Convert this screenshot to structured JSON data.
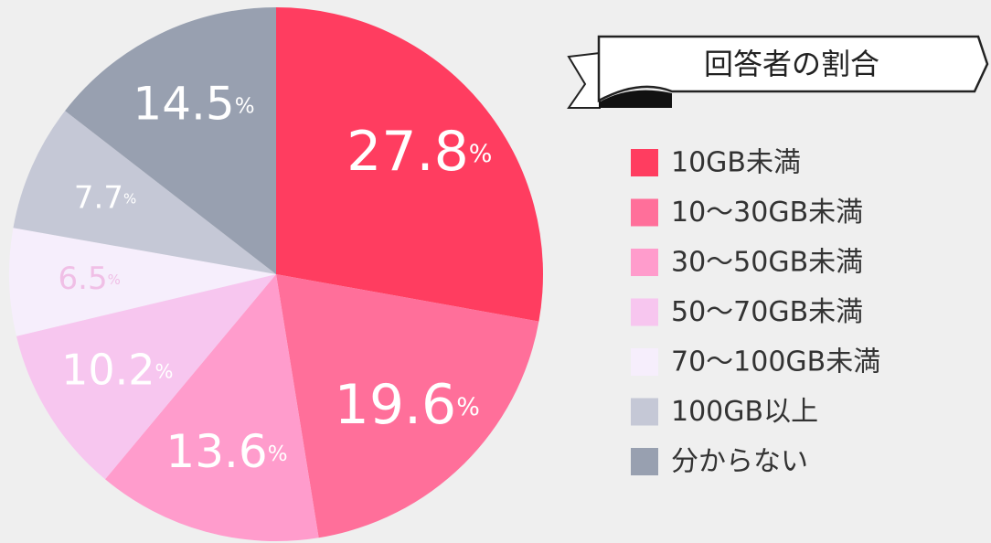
{
  "chart_data": {
    "type": "pie",
    "title": "回答者の割合",
    "categories": [
      "10GB未満",
      "10〜30GB未満",
      "30〜50GB未満",
      "50〜70GB未満",
      "70〜100GB未満",
      "100GB以上",
      "分からない"
    ],
    "values": [
      27.8,
      19.6,
      13.6,
      10.2,
      6.5,
      7.7,
      14.5
    ],
    "value_labels": [
      "27.8%",
      "19.6%",
      "13.6%",
      "10.2%",
      "6.5%",
      "7.7%",
      "14.5%"
    ],
    "colors": [
      "#ff3d60",
      "#ff6f9a",
      "#ff9ccc",
      "#f7c6ef",
      "#f6eefc",
      "#c5c8d6",
      "#98a0b0"
    ],
    "legend": "right"
  }
}
